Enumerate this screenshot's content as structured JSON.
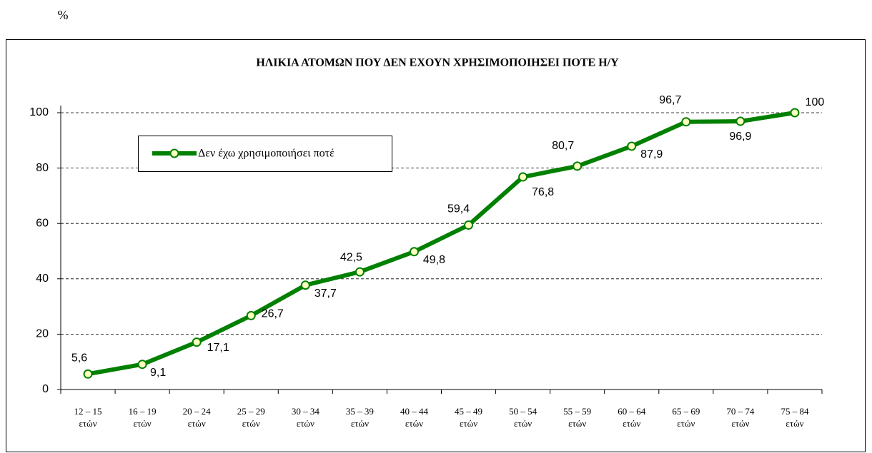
{
  "chart_data": {
    "type": "line",
    "title": "ΗΛΙΚΙΑ ΑΤΟΜΩΝ ΠΟΥ ΔΕΝ ΕΧΟΥΝ ΧΡΗΣΙΜΟΠΟΙΗΣΕΙ ΠΟΤΕ Η/Υ",
    "y_label": "%",
    "categories": [
      "12 – 15 ετών",
      "16 – 19 ετών",
      "20 – 24 ετών",
      "25 – 29 ετών",
      "30 – 34 ετών",
      "35 – 39 ετών",
      "40 – 44 ετών",
      "45 – 49 ετών",
      "50 – 54 ετών",
      "55 – 59 ετών",
      "60 – 64 ετών",
      "65 – 69 ετών",
      "70 – 74 ετών",
      "75 – 84 ετών"
    ],
    "series": [
      {
        "name": "Δεν έχω χρησιμοποιήσει ποτέ",
        "color": "#008000",
        "values": [
          5.6,
          9.1,
          17.1,
          26.7,
          37.7,
          42.5,
          49.8,
          59.4,
          76.8,
          80.7,
          87.9,
          96.7,
          96.9,
          100
        ],
        "value_labels": [
          "5,6",
          "9,1",
          "17,1",
          "26,7",
          "37,7",
          "42,5",
          "49,8",
          "59,4",
          "76,8",
          "80,7",
          "87,9",
          "96,7",
          "96,9",
          "100"
        ]
      }
    ],
    "ylim": [
      0,
      100
    ],
    "yticks": [
      0,
      20,
      40,
      60,
      80,
      100
    ],
    "grid": true,
    "legend": "upper left"
  }
}
